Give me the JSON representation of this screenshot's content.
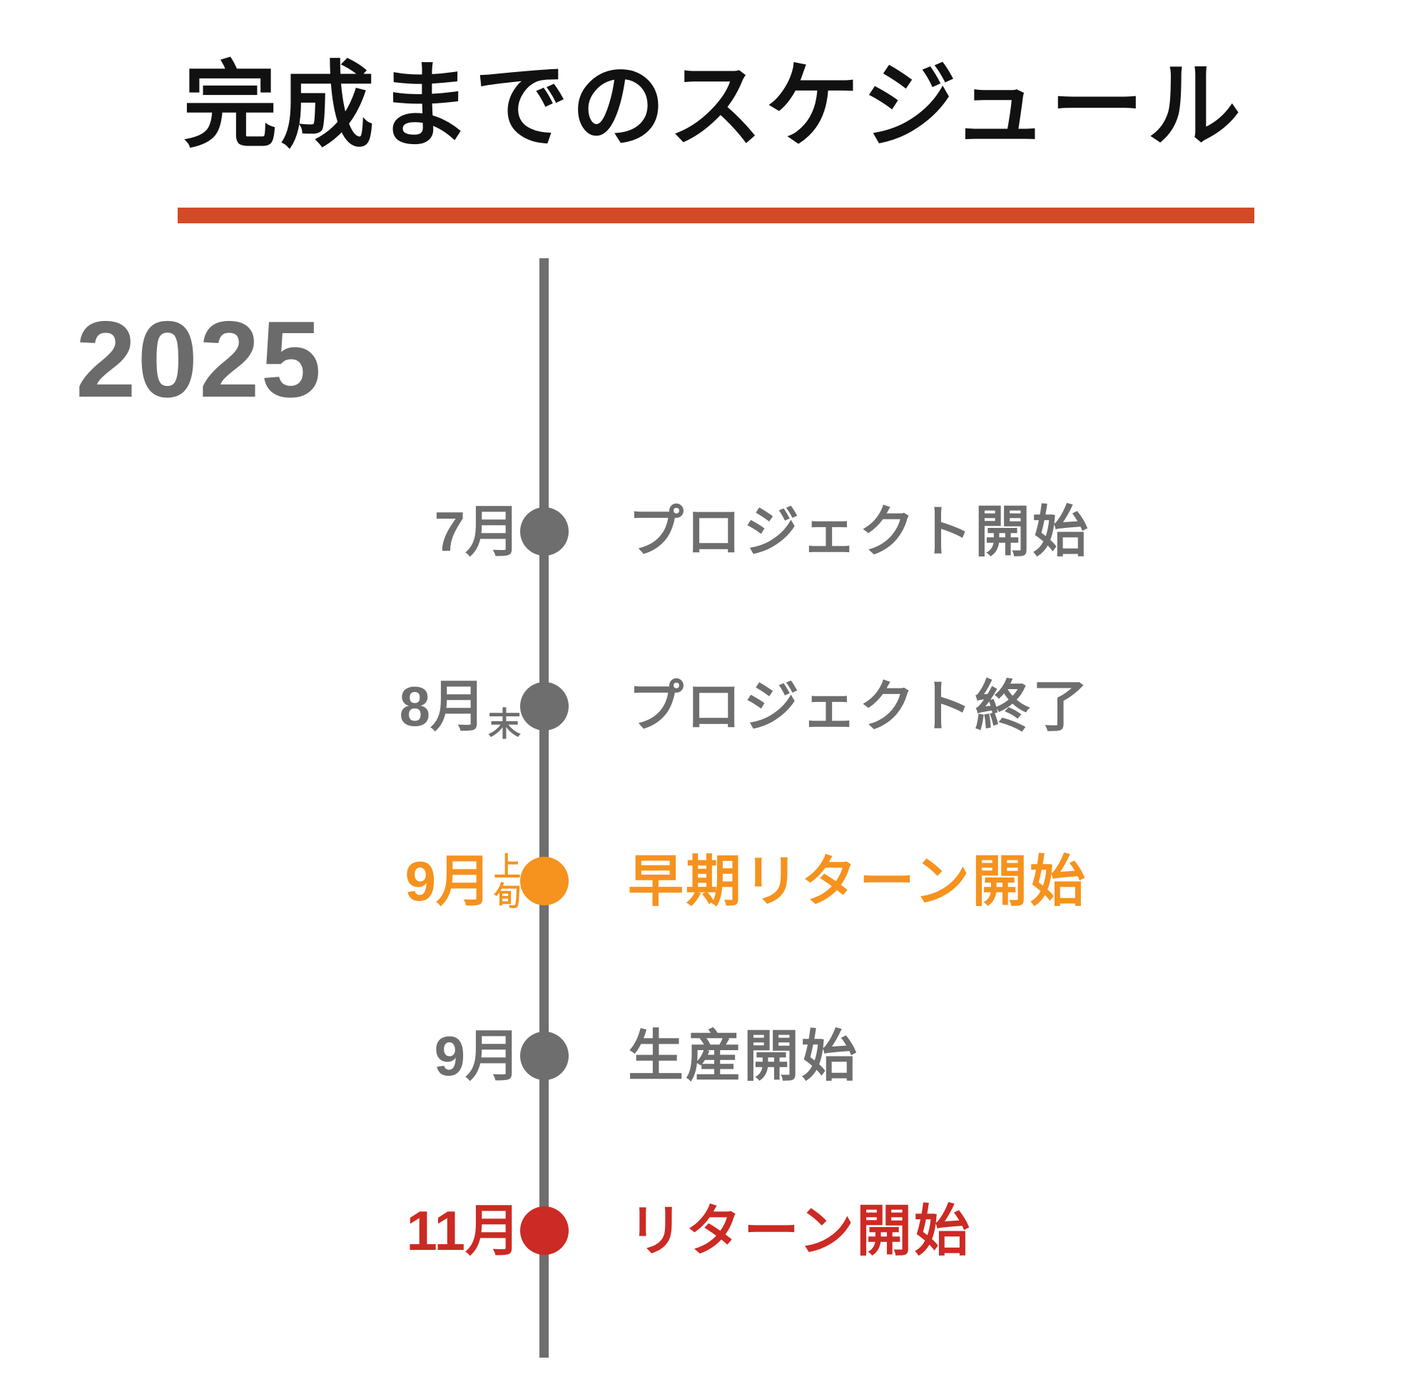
{
  "title": "完成までのスケジュール",
  "year": "2025",
  "colors": {
    "title": "#111111",
    "accent_bar": "#D44A26",
    "gray": "#6E6E6E",
    "orange": "#F6921E",
    "red": "#CC2A24"
  },
  "milestones": [
    {
      "month": "7月",
      "suffix": "",
      "suffix_layout": "none",
      "label": "プロジェクト開始",
      "color_key": "gray"
    },
    {
      "month": "8月",
      "suffix": "末",
      "suffix_layout": "inline",
      "label": "プロジェクト終了",
      "color_key": "gray"
    },
    {
      "month": "9月",
      "suffix": "上旬",
      "suffix_layout": "stacked",
      "label": "早期リターン開始",
      "color_key": "orange"
    },
    {
      "month": "9月",
      "suffix": "",
      "suffix_layout": "none",
      "label": "生産開始",
      "color_key": "gray"
    },
    {
      "month": "11月",
      "suffix": "",
      "suffix_layout": "none",
      "label": "リターン開始",
      "color_key": "red"
    }
  ]
}
